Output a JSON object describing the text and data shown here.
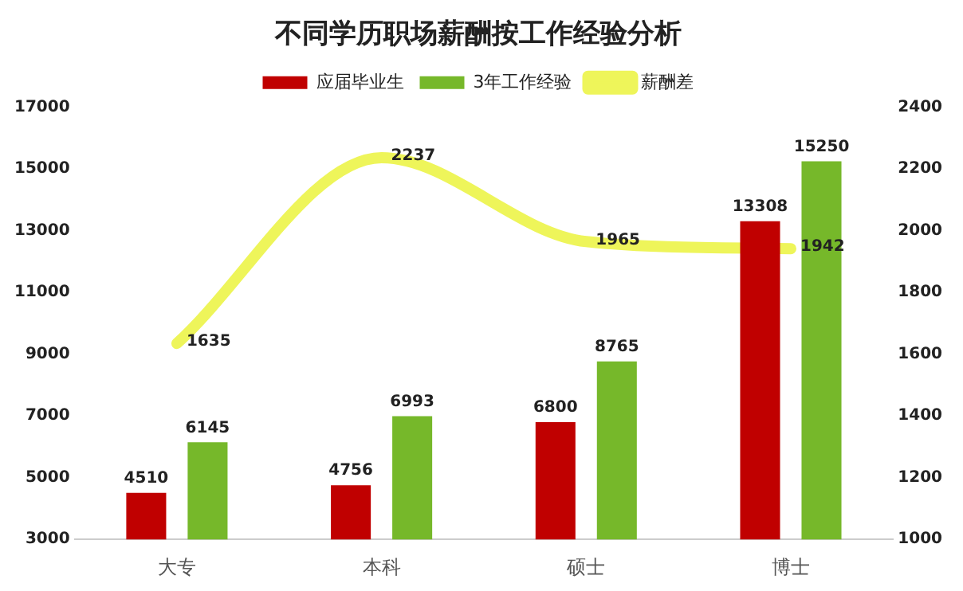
{
  "chart_data": {
    "type": "bar",
    "title": "不同学历职场薪酬按工作经验分析",
    "categories": [
      "大专",
      "本科",
      "硕士",
      "博士"
    ],
    "series": [
      {
        "name": "应届毕业生",
        "color": "#c00000",
        "values": [
          4510,
          4756,
          6800,
          13308
        ]
      },
      {
        "name": "3年工作经验",
        "color": "#76b82a",
        "values": [
          6145,
          6993,
          8765,
          15250
        ]
      },
      {
        "name": "薪酬差",
        "type": "line",
        "axis": "y2",
        "color": "#eef55a",
        "values": [
          1635,
          2237,
          1965,
          1942
        ]
      }
    ],
    "ylim": [
      3000,
      17000
    ],
    "yticks": [
      3000,
      5000,
      7000,
      9000,
      11000,
      13000,
      15000,
      17000
    ],
    "y2lim": [
      1000,
      2400
    ],
    "y2ticks": [
      1000,
      1200,
      1400,
      1600,
      1800,
      2000,
      2200,
      2400
    ],
    "data_labels": true,
    "legend": "top",
    "grid": false
  }
}
